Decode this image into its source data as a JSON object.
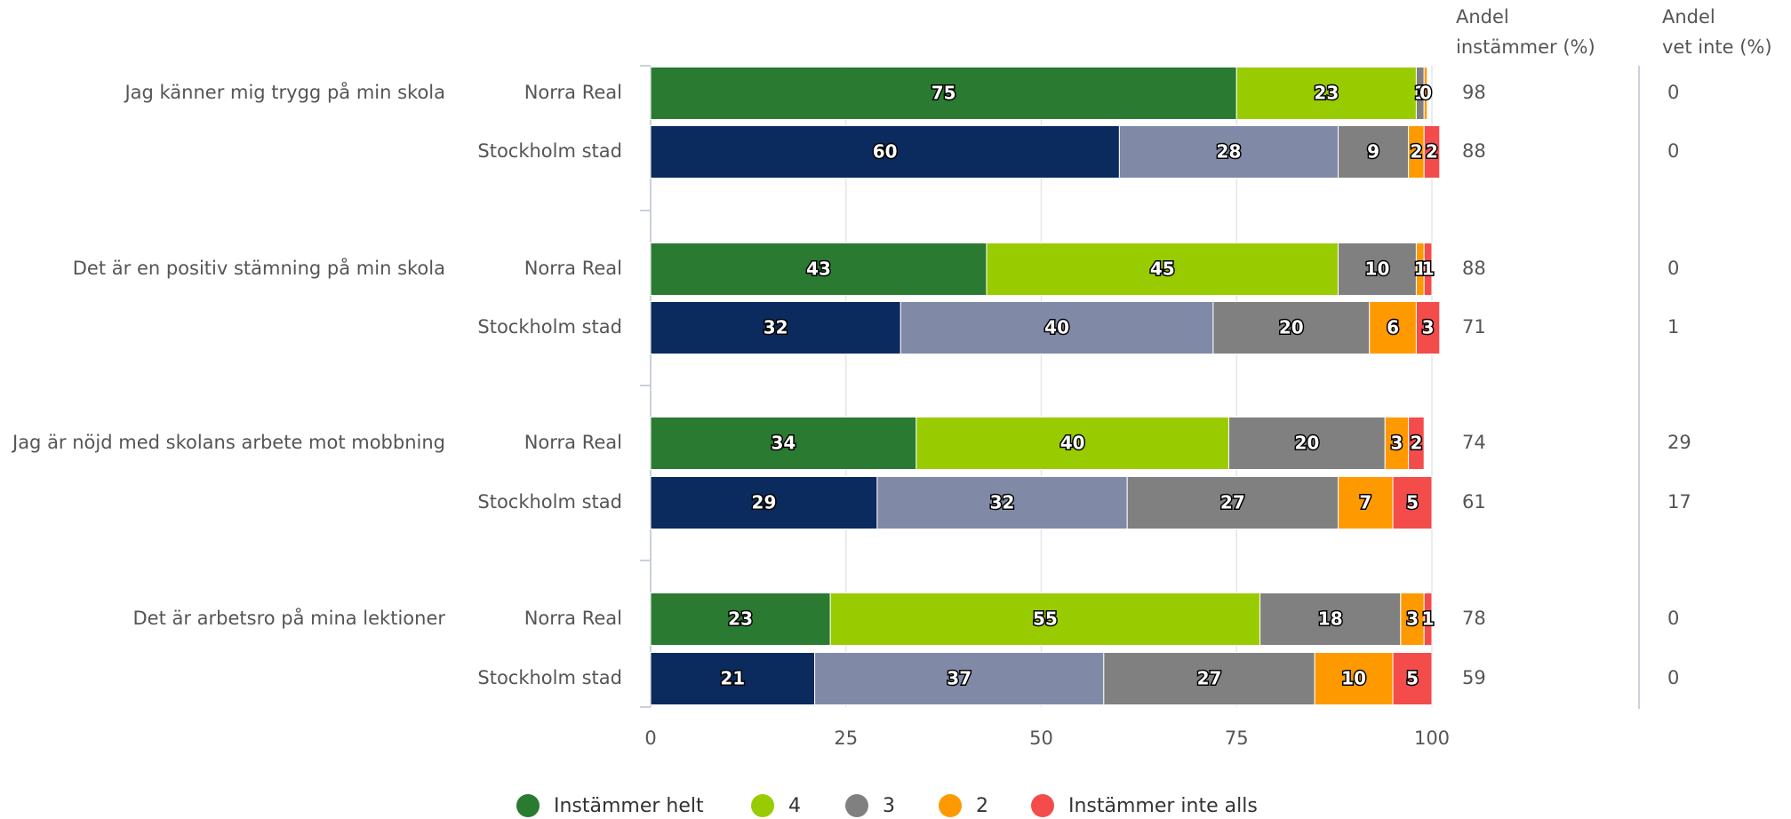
{
  "chart_data": {
    "type": "bar",
    "orientation": "horizontal",
    "stacked": true,
    "questions": [
      "Jag känner mig trygg på min skola",
      "Det är en positiv stämning på min skola",
      "Jag är nöjd med skolans arbete mot mobbning",
      "Det är arbetsro på mina lektioner"
    ],
    "groups": [
      "Norra Real",
      "Stockholm stad"
    ],
    "series": [
      {
        "name": "Instämmer helt",
        "color": "#2a7a31",
        "alt_color": "#0b2a5e",
        "values": [
          75,
          60,
          43,
          32,
          34,
          29,
          23,
          21
        ]
      },
      {
        "name": "4",
        "color": "#99cc00",
        "alt_color": "#8089a6",
        "values": [
          23,
          28,
          45,
          40,
          40,
          32,
          55,
          37
        ]
      },
      {
        "name": "3",
        "color": "#808080",
        "alt_color": "#808080",
        "values": [
          1,
          9,
          10,
          20,
          20,
          27,
          18,
          27
        ]
      },
      {
        "name": "2",
        "color": "#ff9900",
        "alt_color": "#ff9900",
        "values": [
          0.4,
          2,
          1,
          6,
          3,
          7,
          3,
          10
        ],
        "value_labels": [
          "0",
          "2",
          "1",
          "6",
          "3",
          "7",
          "3",
          "10"
        ]
      },
      {
        "name": "Instämmer inte alls",
        "color": "#f44b4b",
        "alt_color": "#f44b4b",
        "values": [
          null,
          2,
          1,
          3,
          2,
          5,
          1,
          5
        ]
      }
    ],
    "columns": [
      {
        "header": [
          "Andel",
          "instämmer (%)"
        ],
        "values": [
          98,
          88,
          88,
          71,
          74,
          61,
          78,
          59
        ]
      },
      {
        "header": [
          "Andel",
          "vet inte (%)"
        ],
        "values": [
          0,
          0,
          0,
          1,
          29,
          17,
          0,
          0
        ]
      }
    ],
    "xlim": [
      0,
      100
    ],
    "xticks": [
      0,
      25,
      50,
      75,
      100
    ],
    "grid": true
  }
}
